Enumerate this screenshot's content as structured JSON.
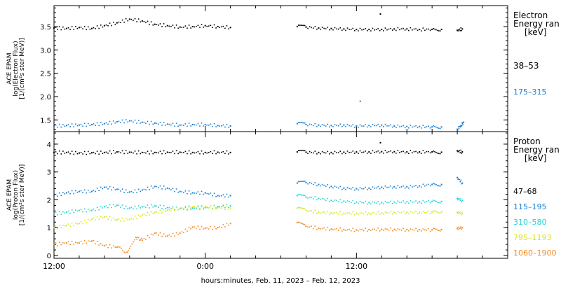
{
  "xlabel": "hours:minutes, Feb. 11, 2023 – Feb. 12, 2023",
  "x_ticks": [
    "12:00",
    "0:00",
    "12:00"
  ],
  "chart_data": [
    {
      "type": "scatter",
      "ylabel_lines": [
        "ACE EPAM",
        "log(Electron Flux)",
        "[1/(cm²s ster MeV)]"
      ],
      "ylim": [
        1.25,
        3.95
      ],
      "y_ticks": [
        "1.5",
        "2.0",
        "2.5",
        "3.0",
        "3.5"
      ],
      "legend_title_lines": [
        "Electron",
        "Energy ran",
        "[keV]"
      ],
      "series": [
        {
          "name": "38–53",
          "color": "#000000",
          "points": [
            [
              0,
              3.47
            ],
            [
              1,
              3.46
            ],
            [
              2,
              3.48
            ],
            [
              3,
              3.46
            ],
            [
              4,
              3.52
            ],
            [
              5,
              3.58
            ],
            [
              6,
              3.66
            ],
            [
              7,
              3.62
            ],
            [
              8,
              3.55
            ],
            [
              9,
              3.52
            ],
            [
              10,
              3.49
            ],
            [
              11,
              3.5
            ],
            [
              12,
              3.52
            ],
            [
              13,
              3.5
            ],
            [
              14,
              3.48
            ],
            [
              19.3,
              3.5
            ],
            [
              20,
              3.49
            ],
            [
              21,
              3.47
            ],
            [
              22,
              3.46
            ],
            [
              23,
              3.45
            ],
            [
              24,
              3.44
            ],
            [
              25,
              3.44
            ],
            [
              26,
              3.44
            ],
            [
              27,
              3.45
            ],
            [
              28,
              3.45
            ],
            [
              29,
              3.44
            ],
            [
              30,
              3.44
            ],
            [
              30.75,
              3.44
            ],
            [
              32,
              3.42
            ],
            [
              32.4,
              3.45
            ],
            [
              25.9,
              3.77
            ]
          ]
        },
        {
          "name": "175–315",
          "color": "#1a7fd1",
          "points": [
            [
              0,
              1.37
            ],
            [
              1,
              1.38
            ],
            [
              2,
              1.39
            ],
            [
              3,
              1.4
            ],
            [
              4,
              1.42
            ],
            [
              5,
              1.46
            ],
            [
              6,
              1.48
            ],
            [
              7,
              1.45
            ],
            [
              8,
              1.43
            ],
            [
              9,
              1.41
            ],
            [
              10,
              1.39
            ],
            [
              11,
              1.4
            ],
            [
              12,
              1.4
            ],
            [
              13,
              1.38
            ],
            [
              14,
              1.37
            ],
            [
              19.3,
              1.42
            ],
            [
              20,
              1.4
            ],
            [
              21,
              1.39
            ],
            [
              22,
              1.38
            ],
            [
              23,
              1.39
            ],
            [
              24,
              1.37
            ],
            [
              25,
              1.38
            ],
            [
              26,
              1.39
            ],
            [
              27,
              1.37
            ],
            [
              28,
              1.36
            ],
            [
              29,
              1.36
            ],
            [
              30,
              1.35
            ],
            [
              30.75,
              1.35
            ],
            [
              32,
              1.3
            ],
            [
              32.3,
              1.38
            ],
            [
              32.5,
              1.45
            ],
            [
              24.3,
              1.9
            ]
          ]
        }
      ]
    },
    {
      "type": "scatter",
      "ylabel_lines": [
        "ACE EPAM",
        "log(Proton Flux)",
        "[1/(cm²s ster MeV)]"
      ],
      "ylim": [
        -0.1,
        4.45
      ],
      "y_ticks": [
        "0",
        "1",
        "2",
        "3",
        "4"
      ],
      "legend_title_lines": [
        "Proton",
        "Energy ran",
        "[keV]"
      ],
      "series": [
        {
          "name": "47–68",
          "color": "#000000",
          "points": [
            [
              0,
              3.7
            ],
            [
              1,
              3.7
            ],
            [
              2,
              3.68
            ],
            [
              3,
              3.69
            ],
            [
              4,
              3.7
            ],
            [
              5,
              3.72
            ],
            [
              6,
              3.71
            ],
            [
              7,
              3.7
            ],
            [
              8,
              3.7
            ],
            [
              9,
              3.71
            ],
            [
              10,
              3.71
            ],
            [
              11,
              3.7
            ],
            [
              12,
              3.7
            ],
            [
              13,
              3.71
            ],
            [
              14,
              3.7
            ],
            [
              19.3,
              3.72
            ],
            [
              20,
              3.71
            ],
            [
              21,
              3.7
            ],
            [
              22,
              3.7
            ],
            [
              23,
              3.71
            ],
            [
              24,
              3.72
            ],
            [
              25,
              3.72
            ],
            [
              26,
              3.73
            ],
            [
              27,
              3.73
            ],
            [
              28,
              3.72
            ],
            [
              29,
              3.72
            ],
            [
              30,
              3.72
            ],
            [
              30.75,
              3.71
            ],
            [
              32,
              3.76
            ],
            [
              32.4,
              3.72
            ],
            [
              25.9,
              4.05
            ]
          ]
        },
        {
          "name": "115–195",
          "color": "#1a7fd1",
          "points": [
            [
              0,
              2.15
            ],
            [
              1,
              2.25
            ],
            [
              2,
              2.3
            ],
            [
              3,
              2.3
            ],
            [
              4,
              2.45
            ],
            [
              5,
              2.38
            ],
            [
              6,
              2.28
            ],
            [
              7,
              2.35
            ],
            [
              8,
              2.48
            ],
            [
              9,
              2.42
            ],
            [
              10,
              2.3
            ],
            [
              11,
              2.25
            ],
            [
              12,
              2.25
            ],
            [
              13,
              2.15
            ],
            [
              14,
              2.15
            ],
            [
              19.3,
              2.6
            ],
            [
              20,
              2.62
            ],
            [
              21,
              2.55
            ],
            [
              22,
              2.48
            ],
            [
              23,
              2.42
            ],
            [
              24,
              2.4
            ],
            [
              25,
              2.42
            ],
            [
              26,
              2.45
            ],
            [
              27,
              2.47
            ],
            [
              28,
              2.47
            ],
            [
              29,
              2.5
            ],
            [
              30,
              2.55
            ],
            [
              30.75,
              2.55
            ],
            [
              32,
              2.8
            ],
            [
              32.4,
              2.6
            ]
          ]
        },
        {
          "name": "310–580",
          "color": "#22d3d3",
          "points": [
            [
              0,
              1.5
            ],
            [
              1,
              1.55
            ],
            [
              2,
              1.62
            ],
            [
              3,
              1.62
            ],
            [
              4,
              1.75
            ],
            [
              5,
              1.8
            ],
            [
              6,
              1.7
            ],
            [
              7,
              1.75
            ],
            [
              8,
              1.78
            ],
            [
              9,
              1.72
            ],
            [
              10,
              1.68
            ],
            [
              11,
              1.7
            ],
            [
              12,
              1.72
            ],
            [
              13,
              1.76
            ],
            [
              14,
              1.78
            ],
            [
              19.3,
              2.15
            ],
            [
              20,
              2.1
            ],
            [
              21,
              2.05
            ],
            [
              22,
              1.98
            ],
            [
              23,
              1.95
            ],
            [
              24,
              1.92
            ],
            [
              25,
              1.9
            ],
            [
              26,
              1.9
            ],
            [
              27,
              1.92
            ],
            [
              28,
              1.93
            ],
            [
              29,
              1.93
            ],
            [
              30,
              1.94
            ],
            [
              30.75,
              1.94
            ],
            [
              32,
              2.05
            ],
            [
              32.4,
              1.98
            ]
          ]
        },
        {
          "name": "795–1193",
          "color": "#d7e61c",
          "points": [
            [
              0,
              1.0
            ],
            [
              1,
              1.08
            ],
            [
              2,
              1.15
            ],
            [
              3,
              1.3
            ],
            [
              4,
              1.38
            ],
            [
              5,
              1.28
            ],
            [
              6,
              1.3
            ],
            [
              7,
              1.45
            ],
            [
              8,
              1.55
            ],
            [
              9,
              1.62
            ],
            [
              10,
              1.7
            ],
            [
              11,
              1.75
            ],
            [
              12,
              1.75
            ],
            [
              13,
              1.72
            ],
            [
              14,
              1.7
            ],
            [
              19.3,
              1.7
            ],
            [
              20,
              1.62
            ],
            [
              21,
              1.55
            ],
            [
              22,
              1.53
            ],
            [
              23,
              1.52
            ],
            [
              24,
              1.52
            ],
            [
              25,
              1.52
            ],
            [
              26,
              1.53
            ],
            [
              27,
              1.55
            ],
            [
              28,
              1.55
            ],
            [
              29,
              1.55
            ],
            [
              30,
              1.56
            ],
            [
              30.75,
              1.57
            ],
            [
              32,
              1.55
            ],
            [
              32.4,
              1.52
            ]
          ]
        },
        {
          "name": "1060–1900",
          "color": "#f58a1f",
          "points": [
            [
              0,
              0.4
            ],
            [
              1,
              0.45
            ],
            [
              2,
              0.45
            ],
            [
              3,
              0.52
            ],
            [
              4,
              0.35
            ],
            [
              5,
              0.3
            ],
            [
              5.8,
              0.12
            ],
            [
              6.5,
              0.65
            ],
            [
              7,
              0.55
            ],
            [
              8,
              0.8
            ],
            [
              9,
              0.7
            ],
            [
              10,
              0.8
            ],
            [
              11,
              1.02
            ],
            [
              12,
              0.98
            ],
            [
              13,
              1.0
            ],
            [
              14,
              1.15
            ],
            [
              19.3,
              1.18
            ],
            [
              20,
              1.05
            ],
            [
              21,
              0.98
            ],
            [
              22,
              0.95
            ],
            [
              23,
              0.93
            ],
            [
              24,
              0.92
            ],
            [
              25,
              0.93
            ],
            [
              26,
              0.94
            ],
            [
              27,
              0.94
            ],
            [
              28,
              0.93
            ],
            [
              29,
              0.93
            ],
            [
              30,
              0.92
            ],
            [
              30.75,
              0.93
            ],
            [
              32,
              0.98
            ],
            [
              32.4,
              1.0
            ]
          ]
        }
      ]
    }
  ]
}
